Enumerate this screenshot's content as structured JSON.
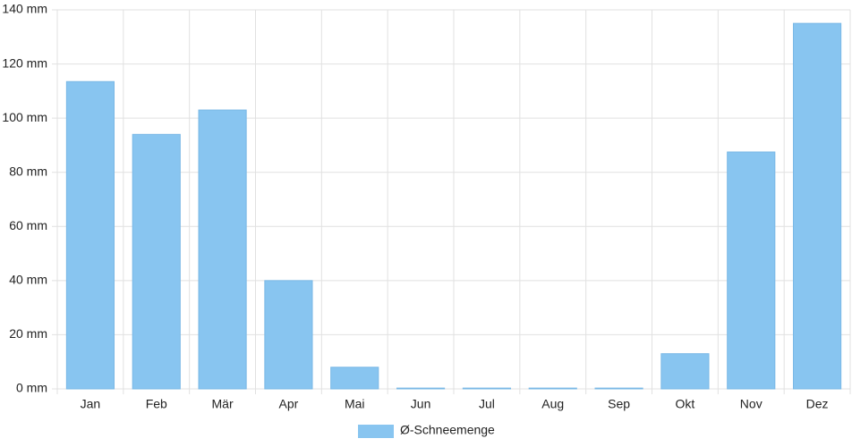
{
  "chart_data": {
    "type": "bar",
    "categories": [
      "Jan",
      "Feb",
      "Mär",
      "Apr",
      "Mai",
      "Jun",
      "Jul",
      "Aug",
      "Sep",
      "Okt",
      "Nov",
      "Dez"
    ],
    "series": [
      {
        "name": "Ø-Schneemenge",
        "color": "#88c5f0",
        "values": [
          113.5,
          94,
          103,
          40,
          8,
          0.3,
          0.3,
          0.3,
          0.3,
          13,
          87.5,
          135
        ]
      }
    ],
    "ylim": [
      0,
      140
    ],
    "yticks": [
      {
        "value": 0,
        "label": "0 mm"
      },
      {
        "value": 20,
        "label": "20 mm"
      },
      {
        "value": 40,
        "label": "40 mm"
      },
      {
        "value": 60,
        "label": "60 mm"
      },
      {
        "value": 80,
        "label": "80 mm"
      },
      {
        "value": 100,
        "label": "100 mm"
      },
      {
        "value": 120,
        "label": "120 mm"
      },
      {
        "value": 140,
        "label": "140 mm"
      }
    ],
    "grid": true,
    "legend": "bottom"
  }
}
